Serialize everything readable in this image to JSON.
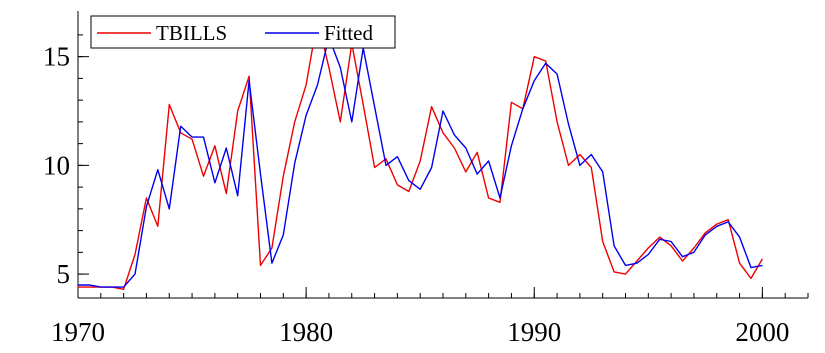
{
  "chart_data": {
    "type": "line",
    "title": "",
    "xlabel": "",
    "ylabel": "",
    "xlim": [
      1970,
      2002
    ],
    "ylim": [
      3.9,
      17.1
    ],
    "x_ticks": [
      1970,
      1980,
      1990,
      2000
    ],
    "y_ticks": [
      5,
      10,
      15
    ],
    "grid": false,
    "legend_position": "top-left",
    "x": [
      1970.0,
      1970.5,
      1971.0,
      1971.5,
      1972.0,
      1972.5,
      1973.0,
      1973.5,
      1974.0,
      1974.5,
      1975.0,
      1975.5,
      1976.0,
      1976.5,
      1977.0,
      1977.5,
      1978.0,
      1978.5,
      1979.0,
      1979.5,
      1980.0,
      1980.5,
      1981.0,
      1981.5,
      1982.0,
      1982.5,
      1983.0,
      1983.5,
      1984.0,
      1984.5,
      1985.0,
      1985.5,
      1986.0,
      1986.5,
      1987.0,
      1987.5,
      1988.0,
      1988.5,
      1989.0,
      1989.5,
      1990.0,
      1990.5,
      1991.0,
      1991.5,
      1992.0,
      1992.5,
      1993.0,
      1993.5,
      1994.0,
      1994.5,
      1995.0,
      1995.5,
      1996.0,
      1996.5,
      1997.0,
      1997.5,
      1998.0,
      1998.5,
      1999.0,
      1999.5,
      2000.0
    ],
    "series": [
      {
        "name": "TBILLS",
        "color": "#ee0000",
        "values": [
          4.4,
          4.4,
          4.4,
          4.4,
          4.3,
          5.9,
          8.5,
          7.2,
          12.8,
          11.5,
          11.2,
          9.5,
          10.9,
          8.7,
          12.5,
          14.1,
          5.4,
          6.2,
          9.5,
          12.0,
          13.7,
          16.7,
          14.5,
          12.0,
          15.6,
          12.8,
          9.9,
          10.3,
          9.1,
          8.8,
          10.2,
          12.7,
          11.5,
          10.8,
          9.7,
          10.6,
          8.5,
          8.3,
          12.9,
          12.6,
          15.0,
          14.8,
          12.0,
          10.0,
          10.5,
          9.9,
          6.5,
          5.1,
          5.0,
          5.6,
          6.2,
          6.7,
          6.3,
          5.6,
          6.2,
          6.9,
          7.3,
          7.5,
          5.5,
          4.8,
          5.7
        ]
      },
      {
        "name": "Fitted",
        "color": "#0000ee",
        "values": [
          4.5,
          4.5,
          4.4,
          4.4,
          4.4,
          5.0,
          8.1,
          9.8,
          8.0,
          11.8,
          11.3,
          11.3,
          9.2,
          10.8,
          8.6,
          13.9,
          9.6,
          5.5,
          6.8,
          10.1,
          12.3,
          13.7,
          15.9,
          14.5,
          12.0,
          15.4,
          12.7,
          10.0,
          10.4,
          9.3,
          8.9,
          9.9,
          12.5,
          11.4,
          10.8,
          9.6,
          10.2,
          8.5,
          10.9,
          12.6,
          13.9,
          14.7,
          14.2,
          11.9,
          10.0,
          10.5,
          9.7,
          6.3,
          5.4,
          5.5,
          5.9,
          6.6,
          6.5,
          5.8,
          6.0,
          6.8,
          7.2,
          7.4,
          6.7,
          5.3,
          5.4
        ]
      }
    ]
  }
}
